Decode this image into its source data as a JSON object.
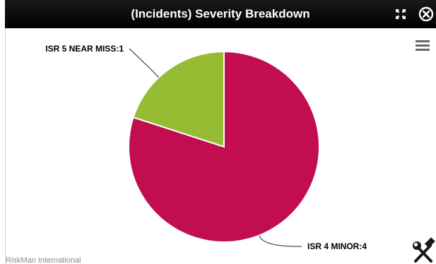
{
  "window": {
    "title": "(Incidents) Severity Breakdown",
    "expand_icon": "expand-arrows-icon",
    "close_icon": "close-circle-icon",
    "menu_icon": "hamburger-menu-icon",
    "tools_icon": "hammer-wrench-icon"
  },
  "footer": {
    "credit": "RiskMan International"
  },
  "colors": {
    "titlebar": "#000000",
    "near_miss": "#96bc33",
    "minor": "#c20d50"
  },
  "chart_data": {
    "type": "pie",
    "title": "",
    "slices": [
      {
        "label": "ISR 5 NEAR MISS",
        "value": 1,
        "data_label": "ISR 5 NEAR MISS:1",
        "color": "#96bc33"
      },
      {
        "label": "ISR 4 MINOR",
        "value": 4,
        "data_label": "ISR 4 MINOR:4",
        "color": "#c20d50"
      }
    ]
  }
}
